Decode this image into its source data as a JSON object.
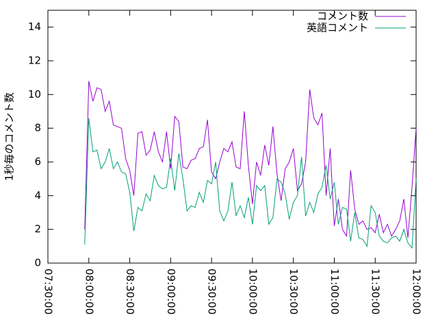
{
  "chart_data": {
    "type": "line",
    "y_label": "1秒毎のコメント数",
    "x": [
      "07:57:00",
      "08:00:00",
      "08:03:00",
      "08:06:00",
      "08:09:00",
      "08:12:00",
      "08:15:00",
      "08:18:00",
      "08:21:00",
      "08:24:00",
      "08:27:00",
      "08:30:00",
      "08:33:00",
      "08:36:00",
      "08:39:00",
      "08:42:00",
      "08:45:00",
      "08:48:00",
      "08:51:00",
      "08:54:00",
      "08:57:00",
      "09:00:00",
      "09:03:00",
      "09:06:00",
      "09:09:00",
      "09:12:00",
      "09:15:00",
      "09:18:00",
      "09:21:00",
      "09:24:00",
      "09:27:00",
      "09:30:00",
      "09:33:00",
      "09:36:00",
      "09:39:00",
      "09:42:00",
      "09:45:00",
      "09:48:00",
      "09:51:00",
      "09:54:00",
      "09:57:00",
      "10:00:00",
      "10:03:00",
      "10:06:00",
      "10:09:00",
      "10:12:00",
      "10:15:00",
      "10:18:00",
      "10:21:00",
      "10:24:00",
      "10:27:00",
      "10:30:00",
      "10:33:00",
      "10:36:00",
      "10:39:00",
      "10:42:00",
      "10:45:00",
      "10:48:00",
      "10:51:00",
      "10:54:00",
      "10:57:00",
      "11:00:00",
      "11:03:00",
      "11:06:00",
      "11:09:00",
      "11:12:00",
      "11:15:00",
      "11:18:00",
      "11:21:00",
      "11:24:00",
      "11:27:00",
      "11:30:00",
      "11:33:00",
      "11:36:00",
      "11:39:00",
      "11:42:00",
      "11:45:00",
      "11:48:00",
      "11:51:00",
      "11:54:00",
      "11:57:00",
      "12:00:00"
    ],
    "series": [
      {
        "name": "コメント数",
        "color": "#9400d3",
        "values": [
          2.0,
          10.8,
          9.6,
          10.4,
          10.3,
          9.0,
          9.6,
          8.2,
          8.1,
          8.0,
          6.2,
          5.5,
          4.0,
          7.7,
          7.8,
          6.4,
          6.7,
          7.8,
          6.6,
          6.0,
          7.8,
          5.6,
          8.7,
          8.4,
          5.7,
          5.6,
          6.1,
          6.2,
          6.8,
          6.9,
          8.5,
          5.4,
          5.0,
          6.0,
          6.8,
          6.6,
          7.2,
          5.7,
          5.6,
          9.0,
          5.8,
          3.5,
          6.0,
          5.2,
          7.0,
          5.8,
          8.1,
          5.3,
          3.7,
          5.6,
          6.0,
          6.8,
          4.3,
          4.7,
          6.0,
          10.3,
          8.6,
          8.2,
          8.9,
          4.0,
          6.8,
          2.2,
          3.8,
          2.0,
          1.6,
          5.5,
          3.2,
          2.3,
          2.5,
          2.0,
          2.1,
          1.8,
          2.9,
          1.8,
          2.3,
          1.6,
          2.0,
          2.5,
          3.8,
          1.5,
          4.5,
          8.0
        ]
      },
      {
        "name": "英語コメント",
        "color": "#009e73",
        "values": [
          1.1,
          8.6,
          6.6,
          6.7,
          5.6,
          6.0,
          6.8,
          5.6,
          6.0,
          5.4,
          5.3,
          4.2,
          1.9,
          3.3,
          3.1,
          4.1,
          3.7,
          5.2,
          4.6,
          4.4,
          4.5,
          6.2,
          4.3,
          6.5,
          5.0,
          3.1,
          3.4,
          3.3,
          4.2,
          3.6,
          4.9,
          4.7,
          6.0,
          3.1,
          2.5,
          3.1,
          4.8,
          2.8,
          3.4,
          2.7,
          3.9,
          2.3,
          4.6,
          4.3,
          4.6,
          2.3,
          2.7,
          5.0,
          4.8,
          4.1,
          2.6,
          3.6,
          4.0,
          6.3,
          2.8,
          3.6,
          3.0,
          4.1,
          4.5,
          5.8,
          3.8,
          4.8,
          2.3,
          3.3,
          3.2,
          1.3,
          3.0,
          1.5,
          1.4,
          1.0,
          3.4,
          3.0,
          1.6,
          1.3,
          1.2,
          1.5,
          1.6,
          1.3,
          2.0,
          1.2,
          0.9,
          5.0
        ]
      }
    ],
    "xlim": [
      "07:30:00",
      "12:00:00"
    ],
    "xticks": [
      "07:30:00",
      "08:00:00",
      "08:30:00",
      "09:00:00",
      "09:30:00",
      "10:00:00",
      "10:30:00",
      "11:00:00",
      "11:30:00",
      "12:00:00"
    ],
    "ylim": [
      0,
      15
    ],
    "yticks": [
      0,
      2,
      4,
      6,
      8,
      10,
      12,
      14
    ],
    "legend": "top-right"
  }
}
